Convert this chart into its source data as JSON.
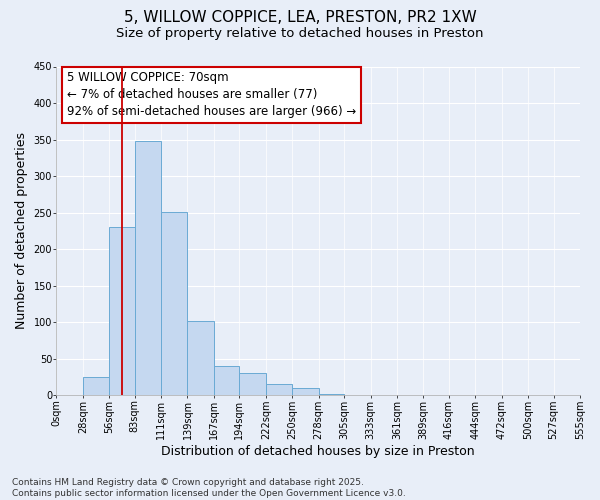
{
  "title": "5, WILLOW COPPICE, LEA, PRESTON, PR2 1XW",
  "subtitle": "Size of property relative to detached houses in Preston",
  "xlabel": "Distribution of detached houses by size in Preston",
  "ylabel": "Number of detached properties",
  "bar_color": "#c5d8f0",
  "bar_edge_color": "#6aaad4",
  "background_color": "#e8eef8",
  "grid_color": "#ffffff",
  "vline_x": 70,
  "vline_color": "#cc0000",
  "annotation_text": "5 WILLOW COPPICE: 70sqm\n← 7% of detached houses are smaller (77)\n92% of semi-detached houses are larger (966) →",
  "annotation_box_color": "#ffffff",
  "annotation_box_edge_color": "#cc0000",
  "bin_edges": [
    0,
    28,
    56,
    83,
    111,
    139,
    167,
    194,
    222,
    250,
    278,
    305,
    333,
    361,
    389,
    416,
    444,
    472,
    500,
    527,
    555
  ],
  "bin_counts": [
    0,
    25,
    230,
    348,
    251,
    101,
    40,
    30,
    15,
    10,
    2,
    1,
    0,
    0,
    0,
    0,
    0,
    0,
    0,
    0
  ],
  "ylim": [
    0,
    450
  ],
  "xlim": [
    0,
    555
  ],
  "yticks": [
    0,
    50,
    100,
    150,
    200,
    250,
    300,
    350,
    400,
    450
  ],
  "tick_labels": [
    "0sqm",
    "28sqm",
    "56sqm",
    "83sqm",
    "111sqm",
    "139sqm",
    "167sqm",
    "194sqm",
    "222sqm",
    "250sqm",
    "278sqm",
    "305sqm",
    "333sqm",
    "361sqm",
    "389sqm",
    "416sqm",
    "444sqm",
    "472sqm",
    "500sqm",
    "527sqm",
    "555sqm"
  ],
  "tick_positions": [
    0,
    28,
    56,
    83,
    111,
    139,
    167,
    194,
    222,
    250,
    278,
    305,
    333,
    361,
    389,
    416,
    444,
    472,
    500,
    527,
    555
  ],
  "footer_text": "Contains HM Land Registry data © Crown copyright and database right 2025.\nContains public sector information licensed under the Open Government Licence v3.0.",
  "title_fontsize": 11,
  "subtitle_fontsize": 9.5,
  "axis_label_fontsize": 9,
  "tick_fontsize": 7,
  "annotation_fontsize": 8.5,
  "footer_fontsize": 6.5
}
